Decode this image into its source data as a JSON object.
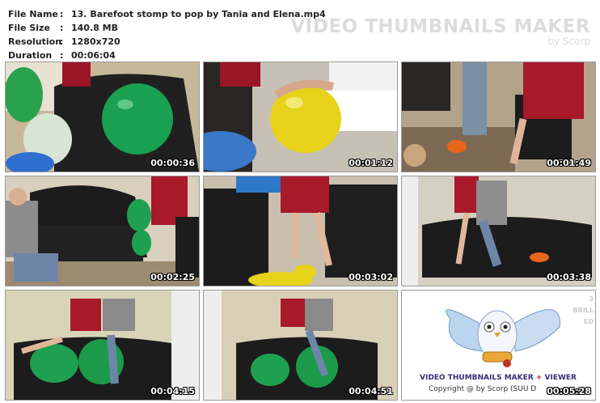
{
  "file_info": {
    "rows": [
      {
        "label": "File Name",
        "value": "13. Barefoot stomp to pop by Tania and Elena.mp4"
      },
      {
        "label": "File Size",
        "value": "140.8 MB"
      },
      {
        "label": "Resolution",
        "value": "1280x720"
      },
      {
        "label": "Duration",
        "value": "00:06:04"
      }
    ],
    "separator": ":"
  },
  "watermark": {
    "title": "VIDEO THUMBNAILS MAKER",
    "subtitle": "by Scorp"
  },
  "thumbnails": [
    {
      "timestamp": "00:00:36"
    },
    {
      "timestamp": "00:01:12"
    },
    {
      "timestamp": "00:01:49"
    },
    {
      "timestamp": "00:02:25"
    },
    {
      "timestamp": "00:03:02"
    },
    {
      "timestamp": "00:03:38"
    },
    {
      "timestamp": "00:04:15"
    },
    {
      "timestamp": "00:04:51"
    },
    {
      "timestamp": "00:05:28"
    }
  ],
  "logo": {
    "product_a": "VIDEO THUMBNAILS MAKER",
    "plus": " + ",
    "product_b": "VIEWER",
    "copyright": "Copyright @ by Scorp (SUU D",
    "side_text_1": "3",
    "side_text_2": "BRILL",
    "side_text_3": "ED"
  },
  "colors": {
    "green_balloon": "#1fa050",
    "yellow_balloon": "#e8d21a",
    "sofa": "#1c1c1c",
    "dress": "#a8192a"
  }
}
